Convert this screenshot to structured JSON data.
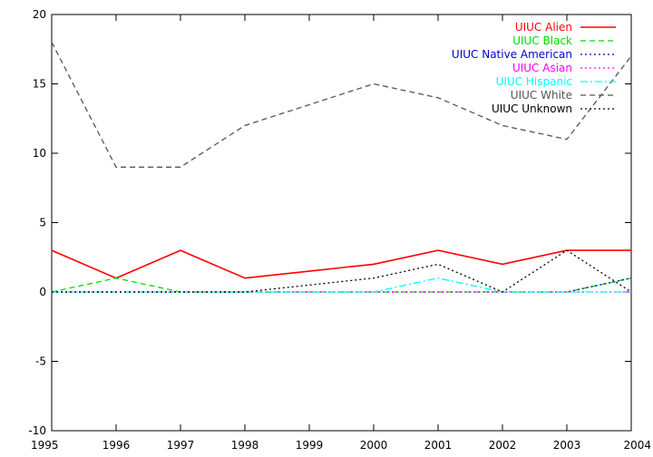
{
  "chart_data": {
    "type": "line",
    "title": "",
    "xlabel": "",
    "ylabel": "",
    "xlim": [
      1995,
      2004
    ],
    "ylim": [
      -10,
      20
    ],
    "x": [
      1995,
      1996,
      1997,
      1998,
      1999,
      2000,
      2001,
      2002,
      2003,
      2004
    ],
    "x_ticks": [
      "1995",
      "1996",
      "1997",
      "1998",
      "1999",
      "2000",
      "2001",
      "2002",
      "2003",
      "2004"
    ],
    "y_ticks": [
      "-10",
      "-5",
      "0",
      "5",
      "10",
      "15",
      "20"
    ],
    "grid": false,
    "legend_position": "top-right",
    "series": [
      {
        "name": "UIUC Alien",
        "color": "#ff0000",
        "dash": "solid",
        "values": [
          3,
          1,
          3,
          1,
          1.5,
          2,
          3,
          2,
          3,
          3
        ]
      },
      {
        "name": "UIUC Black",
        "color": "#00dd00",
        "dash": "dashed",
        "values": [
          0,
          1,
          0,
          0,
          0,
          0,
          0,
          0,
          0,
          1
        ]
      },
      {
        "name": "UIUC Native American",
        "color": "#0000cc",
        "dash": "dotted",
        "values": [
          0,
          0,
          0,
          0,
          0,
          0,
          0,
          0,
          0,
          1
        ]
      },
      {
        "name": "UIUC Asian",
        "color": "#ff00ff",
        "dash": "dotted",
        "values": [
          0,
          0,
          0,
          0,
          0,
          0,
          0,
          0,
          0,
          0
        ]
      },
      {
        "name": "UIUC Hispanic",
        "color": "#00ffff",
        "dash": "dashdot",
        "values": [
          0,
          0,
          0,
          0,
          0,
          0,
          1,
          0,
          0,
          0
        ]
      },
      {
        "name": "UIUC White",
        "color": "#555555",
        "dash": "dashed",
        "values": [
          18,
          9,
          9,
          12,
          13.5,
          15,
          14,
          12,
          11,
          17
        ]
      },
      {
        "name": "UIUC Unknown",
        "color": "#000000",
        "dash": "dotted",
        "values": [
          0,
          0,
          0,
          0,
          0.5,
          1,
          2,
          0,
          3,
          0
        ]
      }
    ]
  }
}
